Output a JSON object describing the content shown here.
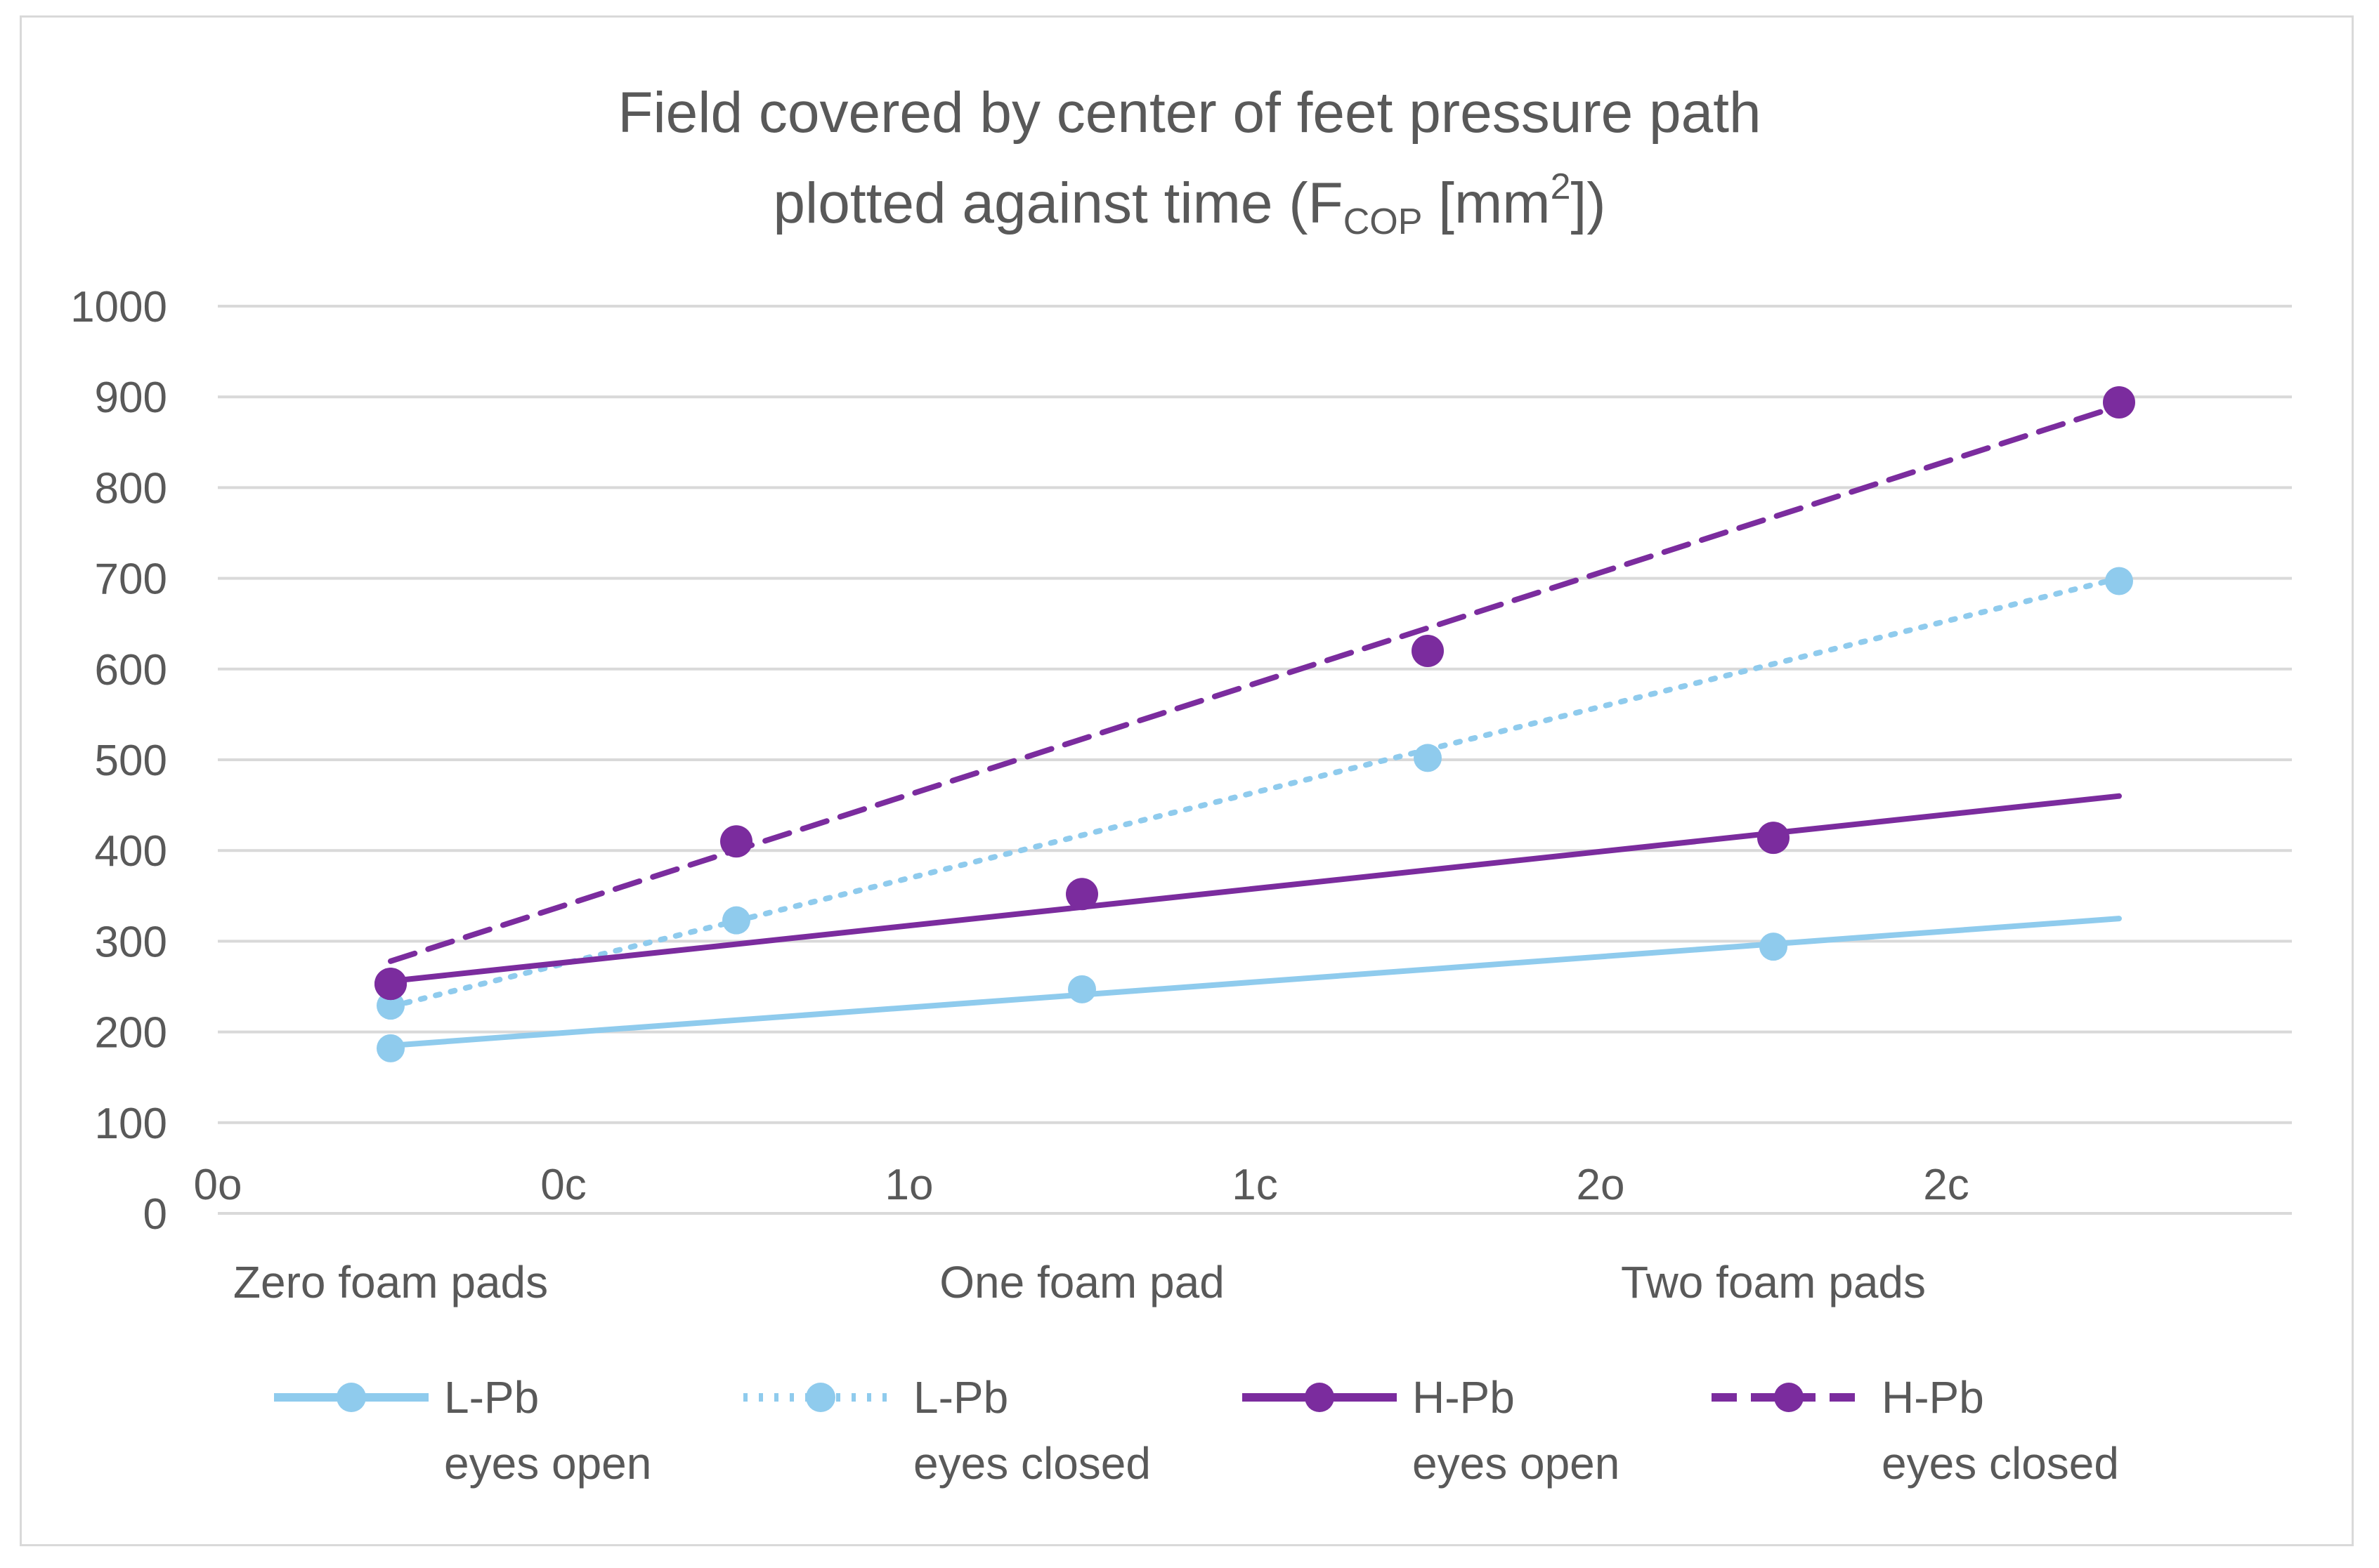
{
  "chart_data": {
    "type": "line",
    "title_line1": "Field covered by center of feet pressure path",
    "title_line2_pre": "plotted against time (F",
    "title_sub": "COP",
    "title_mid": " [mm",
    "title_sup": "2",
    "title_post": "])",
    "ylim": [
      0,
      1000
    ],
    "yticks": [
      0,
      100,
      200,
      300,
      400,
      500,
      600,
      700,
      800,
      900,
      1000
    ],
    "ytick_labels": [
      "0",
      "100",
      "200",
      "300",
      "400",
      "500",
      "600",
      "700",
      "800",
      "900",
      "1000"
    ],
    "x_ticks": [
      "0o",
      "0c",
      "1o",
      "1c",
      "2o",
      "2c"
    ],
    "x_range": [
      0,
      6
    ],
    "groups": [
      {
        "label": "Zero foam pads",
        "center": 0.5
      },
      {
        "label": "One foam pad",
        "center": 2.5
      },
      {
        "label": "Two foam pads",
        "center": 4.5
      }
    ],
    "series": [
      {
        "name": "L-Pb eyes open",
        "legend1": "L-Pb",
        "legend2": "eyes open",
        "color": "#8fcbed",
        "style": "solid",
        "x": [
          0.5,
          2.5,
          4.5
        ],
        "values": [
          182,
          247,
          294
        ],
        "trend": [
          185,
          325
        ]
      },
      {
        "name": "L-Pb eyes closed",
        "legend1": "L-Pb",
        "legend2": "eyes closed",
        "color": "#8fcbed",
        "style": "dotted",
        "x": [
          0.5,
          1.5,
          3.5,
          5.5
        ],
        "values": [
          229,
          323,
          502,
          697
        ],
        "trend": [
          228,
          700
        ]
      },
      {
        "name": "H-Pb eyes open",
        "legend1": "H-Pb",
        "legend2": "eyes open",
        "color": "#7b2c9e",
        "style": "solid",
        "x": [
          0.5,
          2.5,
          4.5
        ],
        "values": [
          253,
          352,
          414
        ],
        "trend": [
          256,
          460
        ]
      },
      {
        "name": "H-Pb eyes closed",
        "legend1": "H-Pb",
        "legend2": "eyes closed",
        "color": "#7b2c9e",
        "style": "dashed",
        "x": [
          0.5,
          1.5,
          3.5,
          5.5
        ],
        "values": [
          253,
          410,
          620,
          894
        ],
        "trend": [
          278,
          890
        ]
      }
    ],
    "legend_position": "bottom",
    "grid": true
  }
}
